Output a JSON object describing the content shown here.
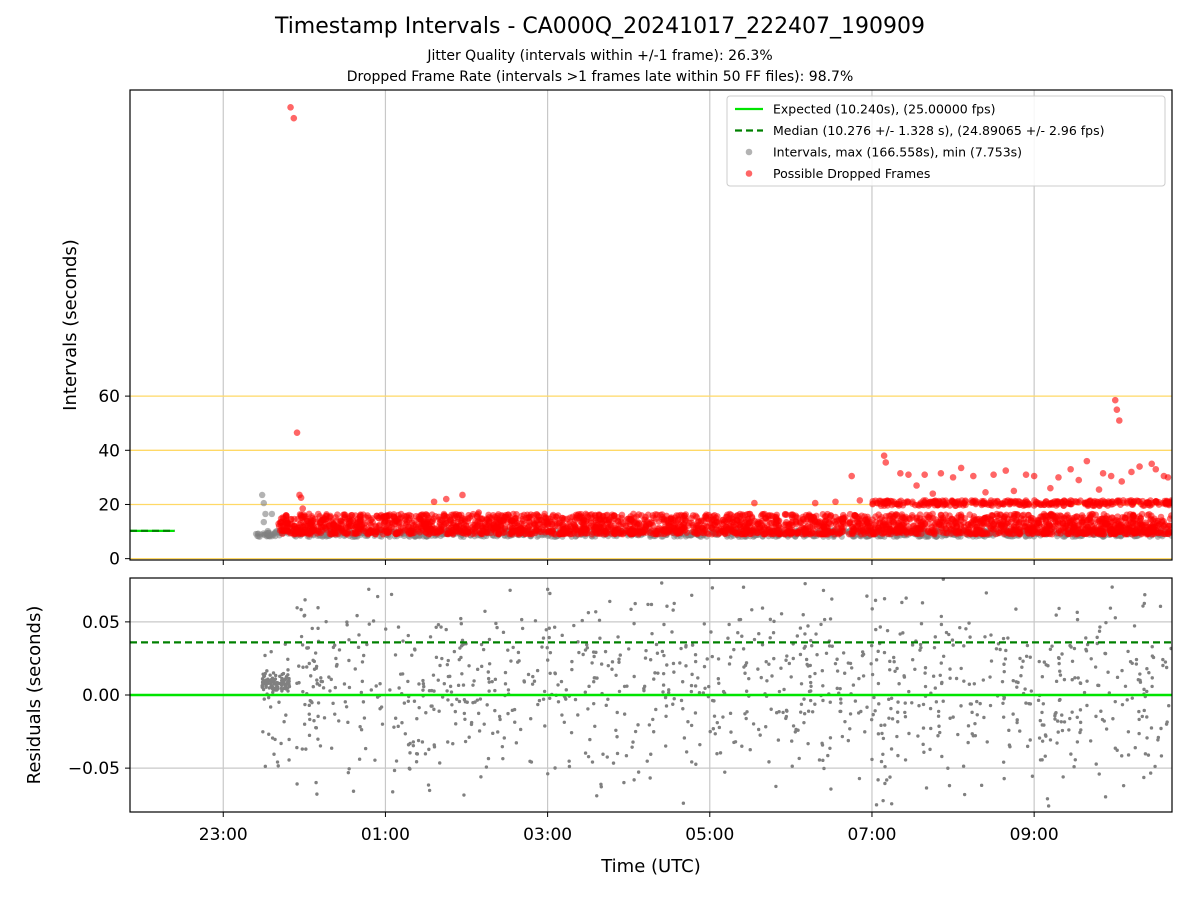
{
  "chart_data": [
    {
      "type": "scatter",
      "panel": "intervals",
      "title": "Timestamp Intervals - CA000Q_20241017_222407_190909",
      "subtitle_lines": [
        "Jitter Quality (intervals within +/-1 frame): 26.3%",
        "Dropped Frame Rate (intervals >1 frames late within 50 FF files): 98.7%"
      ],
      "ylabel": "Intervals (seconds)",
      "xlabel": "",
      "xlim_hours": [
        -2.15,
        10.7
      ],
      "ylim": [
        -0.5,
        173
      ],
      "yticks": [
        0,
        20,
        40,
        60
      ],
      "ytick_labels": [
        "0",
        "20",
        "40",
        "60"
      ],
      "x_grid": true,
      "horizontal_reference_lines": [
        0,
        20,
        40,
        60
      ],
      "horizontal_reference_color": "#ffd966",
      "legend": {
        "placement": "top-right",
        "entries": [
          {
            "label": "Expected (10.240s), (25.00000 fps)",
            "style": "solid-line",
            "color": "#00e400"
          },
          {
            "label": "Median (10.276 +/- 1.328 s), (24.89065 +/- 2.96 fps)",
            "style": "dashed-line",
            "color": "#008000"
          },
          {
            "label": "Intervals, max (166.558s), min (7.753s)",
            "style": "marker",
            "color": "#808080"
          },
          {
            "label": "Possible Dropped Frames",
            "style": "marker",
            "color": "#ff0000"
          }
        ]
      },
      "series": [
        {
          "name": "Expected (10.240s), (25.00000 fps)",
          "kind": "hline",
          "value": 10.24,
          "x_range": [
            -2.15,
            -1.6
          ],
          "color": "#00e400"
        },
        {
          "name": "Median (10.276 +/- 1.328 s), (24.89065 +/- 2.96 fps)",
          "kind": "hline-dashed",
          "value": 10.276,
          "x_range": [
            -2.15,
            -1.6
          ],
          "color": "#008000"
        },
        {
          "name": "Intervals, max (166.558s), min (7.753s)",
          "kind": "scatter",
          "color": "#808080",
          "dense_band": {
            "x_range": [
              -0.6,
              10.7
            ],
            "y_range": [
              8.0,
              10.5
            ],
            "count": 1100
          },
          "points": [
            {
              "x": -0.52,
              "y": 23.5
            },
            {
              "x": -0.5,
              "y": 20.5
            },
            {
              "x": -0.48,
              "y": 16.5
            },
            {
              "x": -0.5,
              "y": 13.5
            },
            {
              "x": -0.45,
              "y": 10.2
            },
            {
              "x": -0.4,
              "y": 16.5
            },
            {
              "x": -0.35,
              "y": 10.0
            },
            {
              "x": -0.3,
              "y": 9.8
            }
          ]
        },
        {
          "name": "Possible Dropped Frames",
          "kind": "scatter",
          "color": "#ff0000",
          "dense_band": {
            "x_range": [
              -0.32,
              10.7
            ],
            "y_range": [
              9.0,
              16.5
            ],
            "count": 2600
          },
          "upper_band": {
            "x_range": [
              7.0,
              10.7
            ],
            "y_range": [
              19.5,
              21.5
            ],
            "count": 320
          },
          "points": [
            {
              "x": -0.17,
              "y": 166.6
            },
            {
              "x": -0.13,
              "y": 162.6
            },
            {
              "x": -0.09,
              "y": 46.5
            },
            {
              "x": -0.06,
              "y": 23.5
            },
            {
              "x": -0.04,
              "y": 22.5
            },
            {
              "x": -0.02,
              "y": 18.5
            },
            {
              "x": 1.6,
              "y": 21.0
            },
            {
              "x": 1.75,
              "y": 22.0
            },
            {
              "x": 1.95,
              "y": 23.5
            },
            {
              "x": 2.15,
              "y": 17.0
            },
            {
              "x": 5.55,
              "y": 20.5
            },
            {
              "x": 6.3,
              "y": 20.5
            },
            {
              "x": 6.55,
              "y": 21.0
            },
            {
              "x": 6.75,
              "y": 30.5
            },
            {
              "x": 6.85,
              "y": 21.5
            },
            {
              "x": 7.15,
              "y": 38.0
            },
            {
              "x": 7.17,
              "y": 35.5
            },
            {
              "x": 7.35,
              "y": 31.5
            },
            {
              "x": 7.45,
              "y": 31.0
            },
            {
              "x": 7.55,
              "y": 27.0
            },
            {
              "x": 7.65,
              "y": 31.0
            },
            {
              "x": 7.75,
              "y": 24.0
            },
            {
              "x": 7.85,
              "y": 31.5
            },
            {
              "x": 8.0,
              "y": 30.0
            },
            {
              "x": 8.1,
              "y": 33.5
            },
            {
              "x": 8.25,
              "y": 30.5
            },
            {
              "x": 8.4,
              "y": 24.5
            },
            {
              "x": 8.5,
              "y": 31.0
            },
            {
              "x": 8.65,
              "y": 32.5
            },
            {
              "x": 8.75,
              "y": 25.0
            },
            {
              "x": 8.9,
              "y": 31.0
            },
            {
              "x": 9.0,
              "y": 30.5
            },
            {
              "x": 9.2,
              "y": 26.0
            },
            {
              "x": 9.3,
              "y": 30.0
            },
            {
              "x": 9.45,
              "y": 33.0
            },
            {
              "x": 9.55,
              "y": 29.0
            },
            {
              "x": 9.65,
              "y": 36.0
            },
            {
              "x": 9.8,
              "y": 25.5
            },
            {
              "x": 9.85,
              "y": 31.5
            },
            {
              "x": 9.95,
              "y": 30.5
            },
            {
              "x": 10.0,
              "y": 58.5
            },
            {
              "x": 10.02,
              "y": 55.0
            },
            {
              "x": 10.05,
              "y": 51.0
            },
            {
              "x": 10.08,
              "y": 28.5
            },
            {
              "x": 10.2,
              "y": 32.0
            },
            {
              "x": 10.3,
              "y": 34.0
            },
            {
              "x": 10.45,
              "y": 35.0
            },
            {
              "x": 10.5,
              "y": 33.0
            },
            {
              "x": 10.6,
              "y": 30.5
            },
            {
              "x": 10.65,
              "y": 30.0
            }
          ]
        }
      ]
    },
    {
      "type": "scatter",
      "panel": "residuals",
      "ylabel": "Residuals (seconds)",
      "xlabel": "Time (UTC)",
      "xlim_hours": [
        -2.15,
        10.7
      ],
      "ylim": [
        -0.08,
        0.08
      ],
      "yticks": [
        -0.05,
        0.0,
        0.05
      ],
      "ytick_labels": [
        "−0.05",
        "0.00",
        "0.05"
      ],
      "xticks_hours": [
        -1,
        1,
        3,
        5,
        7,
        9
      ],
      "xtick_labels": [
        "23:00",
        "01:00",
        "03:00",
        "05:00",
        "07:00",
        "09:00"
      ],
      "x_grid": true,
      "y_grid": true,
      "series": [
        {
          "name": "Expected",
          "kind": "hline",
          "value": 0.0,
          "color": "#00e400"
        },
        {
          "name": "Median",
          "kind": "hline-dashed",
          "value": 0.036,
          "color": "#008000"
        },
        {
          "name": "Residuals",
          "kind": "scatter",
          "color": "#808080",
          "early_cluster": {
            "x_range": [
              -0.52,
              -0.18
            ],
            "y_center": 0.008,
            "y_spread": 0.007,
            "count": 110
          },
          "early_outliers": {
            "x_range": [
              -0.52,
              -0.18
            ],
            "y_range": [
              -0.05,
              0.04
            ],
            "count": 22
          },
          "main_cloud": {
            "x_range": [
              -0.1,
              10.7
            ],
            "y_range": [
              -0.08,
              0.08
            ],
            "count": 1050
          }
        }
      ]
    }
  ]
}
